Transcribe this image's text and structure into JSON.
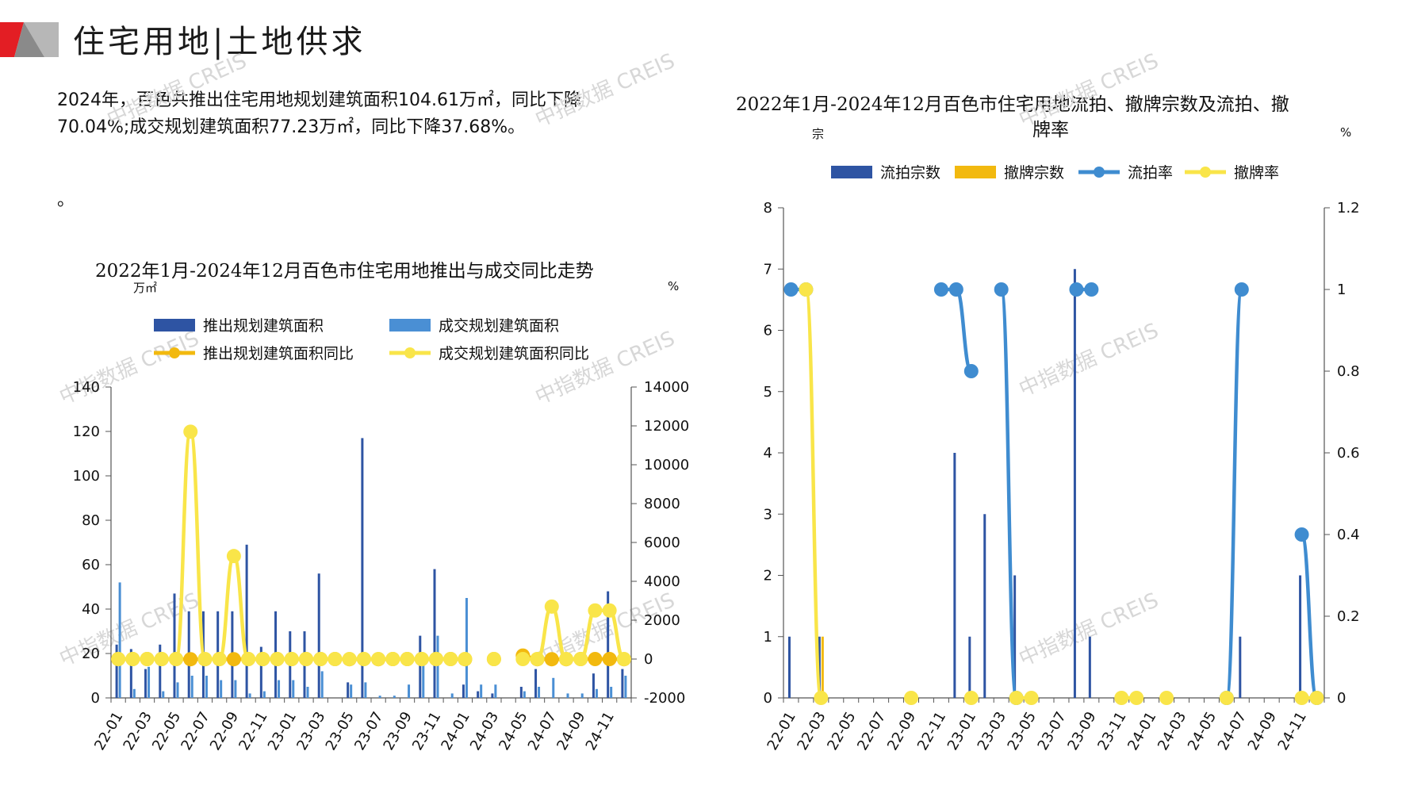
{
  "page": {
    "title": "住宅用地|土地供求",
    "paragraph_line1": "2024年，百色共推出住宅用地规划建筑面积104.61万㎡，同比下降",
    "paragraph_line2": "70.04%;成交规划建筑面积77.23万㎡，同比下降37.68%。",
    "stray_mark": "。",
    "watermark": "中指数据 CREIS"
  },
  "colors": {
    "dark_blue": "#2e54a3",
    "light_blue": "#4a8fd4",
    "orange_yellow": "#f2b90f",
    "bright_yellow": "#f9e549",
    "line_blue": "#3f8cd0",
    "logo_red": "#e31e24",
    "logo_gray": "#9a9a9a"
  },
  "chart_data": [
    {
      "type": "bar+line",
      "title": "2022年1月-2024年12月百色市住宅用地推出与成交同比走势",
      "y_left_label": "万㎡",
      "y_right_label": "%",
      "y_left_ticks": [
        "0",
        "20",
        "40",
        "60",
        "80",
        "100",
        "120",
        "140"
      ],
      "y_right_ticks": [
        "-2000",
        "0",
        "2000",
        "4000",
        "6000",
        "8000",
        "10000",
        "12000",
        "14000"
      ],
      "ylim_left": [
        0,
        140
      ],
      "ylim_right": [
        -2000,
        14000
      ],
      "x_tick_labels": [
        "22-01",
        "22-03",
        "22-05",
        "22-07",
        "22-09",
        "22-11",
        "23-01",
        "23-03",
        "23-05",
        "23-07",
        "23-09",
        "23-11",
        "24-01",
        "24-03",
        "24-05",
        "24-07",
        "24-09",
        "24-11"
      ],
      "categories": [
        "22-01",
        "22-02",
        "22-03",
        "22-04",
        "22-05",
        "22-06",
        "22-07",
        "22-08",
        "22-09",
        "22-10",
        "22-11",
        "22-12",
        "23-01",
        "23-02",
        "23-03",
        "23-04",
        "23-05",
        "23-06",
        "23-07",
        "23-08",
        "23-09",
        "23-10",
        "23-11",
        "23-12",
        "24-01",
        "24-02",
        "24-03",
        "24-04",
        "24-05",
        "24-06",
        "24-07",
        "24-08",
        "24-09",
        "24-10",
        "24-11",
        "24-12"
      ],
      "series": [
        {
          "name": "推出规划建筑面积",
          "kind": "bar",
          "axis": "left",
          "color": "#2e54a3",
          "values": [
            24,
            22,
            13,
            24,
            47,
            39,
            39,
            39,
            39,
            69,
            23,
            39,
            30,
            30,
            56,
            0,
            7,
            117,
            0,
            0,
            0,
            28,
            58,
            0,
            6,
            3,
            2,
            0,
            5,
            13,
            0,
            0,
            0,
            11,
            48,
            13
          ]
        },
        {
          "name": "成交规划建筑面积",
          "kind": "bar",
          "axis": "left",
          "color": "#4a8fd4",
          "values": [
            52,
            4,
            14,
            3,
            7,
            10,
            10,
            8,
            8,
            2,
            3,
            8,
            8,
            5,
            12,
            0,
            6,
            7,
            1,
            1,
            6,
            18,
            28,
            2,
            45,
            6,
            6,
            0,
            3,
            5,
            9,
            2,
            2,
            4,
            5,
            10
          ]
        },
        {
          "name": "推出规划建筑面积同比",
          "kind": "line",
          "axis": "right",
          "color": "#f2b90f",
          "values": [
            0,
            0,
            0,
            0,
            0,
            -10,
            -10,
            0,
            -10,
            0,
            0,
            0,
            0,
            0,
            0,
            0,
            -10,
            0,
            -10,
            0,
            0,
            0,
            0,
            0,
            -10,
            null,
            0,
            null,
            180,
            -10,
            -10,
            -10,
            0,
            0,
            0,
            -10
          ]
        },
        {
          "name": "成交规划建筑面积同比",
          "kind": "line",
          "axis": "right",
          "color": "#f9e549",
          "values": [
            0,
            0,
            0,
            0,
            0,
            11700,
            0,
            0,
            5300,
            0,
            0,
            0,
            0,
            0,
            0,
            0,
            0,
            0,
            0,
            0,
            0,
            0,
            0,
            0,
            0,
            null,
            0,
            null,
            0,
            0,
            2700,
            0,
            0,
            2500,
            2500,
            0
          ]
        }
      ]
    },
    {
      "type": "bar+line",
      "title": "2022年1月-2024年12月百色市住宅用地流拍、撤牌宗数及流拍、撤牌率",
      "title_line1": "2022年1月-2024年12月百色市住宅用地流拍、撤牌宗数及流拍、撤",
      "title_line2": "牌率",
      "y_left_label": "宗",
      "y_right_label": "%",
      "y_left_ticks": [
        "0",
        "1",
        "2",
        "3",
        "4",
        "5",
        "6",
        "7",
        "8"
      ],
      "y_right_ticks": [
        "0",
        "0.2",
        "0.4",
        "0.6",
        "0.8",
        "1",
        "1.2"
      ],
      "ylim_left": [
        0,
        8
      ],
      "ylim_right": [
        0,
        1.2
      ],
      "x_tick_labels": [
        "22-01",
        "22-03",
        "22-05",
        "22-07",
        "22-09",
        "22-11",
        "23-01",
        "23-03",
        "23-05",
        "23-07",
        "23-09",
        "23-11",
        "24-01",
        "24-03",
        "24-05",
        "24-07",
        "24-09",
        "24-11"
      ],
      "categories": [
        "22-01",
        "22-02",
        "22-03",
        "22-04",
        "22-05",
        "22-06",
        "22-07",
        "22-08",
        "22-09",
        "22-10",
        "22-11",
        "22-12",
        "23-01",
        "23-02",
        "23-03",
        "23-04",
        "23-05",
        "23-06",
        "23-07",
        "23-08",
        "23-09",
        "23-10",
        "23-11",
        "23-12",
        "24-01",
        "24-02",
        "24-03",
        "24-04",
        "24-05",
        "24-06",
        "24-07",
        "24-08",
        "24-09",
        "24-10",
        "24-11",
        "24-12"
      ],
      "series": [
        {
          "name": "流拍宗数",
          "kind": "bar",
          "axis": "left",
          "color": "#2e54a3",
          "values": [
            1,
            0,
            1,
            0,
            0,
            0,
            0,
            0,
            0,
            0,
            0,
            4,
            1,
            3,
            0,
            2,
            0,
            0,
            0,
            7,
            1,
            0,
            0,
            0,
            0,
            0,
            0,
            0,
            0,
            0,
            1,
            0,
            0,
            0,
            2,
            0
          ]
        },
        {
          "name": "撤牌宗数",
          "kind": "bar",
          "axis": "left",
          "color": "#f2b90f",
          "values": [
            0,
            0,
            1,
            0,
            0,
            0,
            0,
            0,
            0,
            0,
            0,
            0,
            0,
            0,
            0,
            0,
            0,
            0,
            0,
            0,
            0,
            0,
            0,
            0,
            0,
            0,
            0,
            0,
            0,
            0,
            0,
            0,
            0,
            0,
            0,
            0
          ]
        },
        {
          "name": "流拍率",
          "kind": "line",
          "axis": "right",
          "color": "#3f8cd0",
          "values": [
            1,
            1,
            null,
            null,
            null,
            null,
            null,
            null,
            null,
            null,
            1,
            1,
            0.8,
            null,
            1,
            0,
            null,
            null,
            null,
            1,
            1,
            null,
            null,
            null,
            null,
            null,
            null,
            null,
            null,
            0,
            1,
            null,
            null,
            null,
            0.4,
            0
          ]
        },
        {
          "name": "撤牌率",
          "kind": "line",
          "axis": "right",
          "color": "#f9e549",
          "values": [
            null,
            1,
            0,
            null,
            null,
            null,
            null,
            null,
            0,
            null,
            null,
            null,
            0,
            null,
            null,
            0,
            0,
            null,
            null,
            null,
            null,
            null,
            0,
            0,
            null,
            0,
            null,
            null,
            null,
            0,
            null,
            null,
            null,
            null,
            0,
            0
          ]
        }
      ]
    }
  ]
}
